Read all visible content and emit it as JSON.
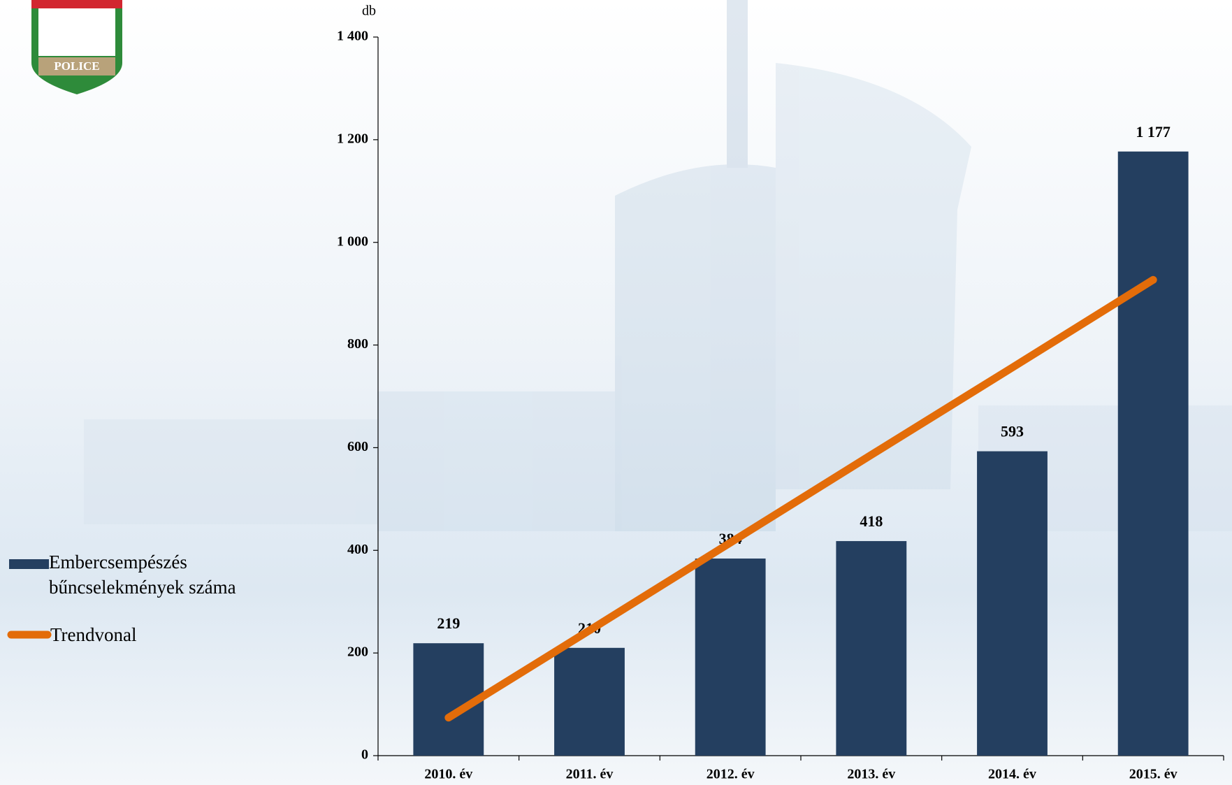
{
  "logo": {
    "text": "POLICE"
  },
  "chart_data": {
    "type": "bar",
    "y_unit": "db",
    "categories": [
      "2010. év",
      "2011. év",
      "2012. év",
      "2013. év",
      "2014. év",
      "2015. év"
    ],
    "series": [
      {
        "name": "Embercsempészés bűncselekmények száma",
        "type": "bar",
        "color": "#243f60",
        "values": [
          219,
          210,
          384,
          418,
          593,
          1177
        ],
        "value_labels": [
          "219",
          "210",
          "384",
          "418",
          "593",
          "1 177"
        ]
      },
      {
        "name": "Trendvonal",
        "type": "line",
        "color": "#e36c09",
        "values": [
          74,
          244,
          415,
          586,
          756,
          927
        ]
      }
    ],
    "ylim": [
      0,
      1400
    ],
    "yticks": [
      0,
      200,
      400,
      600,
      800,
      {
        "value": 1000,
        "label": "1 000"
      },
      {
        "value": 1200,
        "label": "1 200"
      },
      {
        "value": 1400,
        "label": "1 400"
      }
    ],
    "grid": false,
    "legend": "left"
  }
}
